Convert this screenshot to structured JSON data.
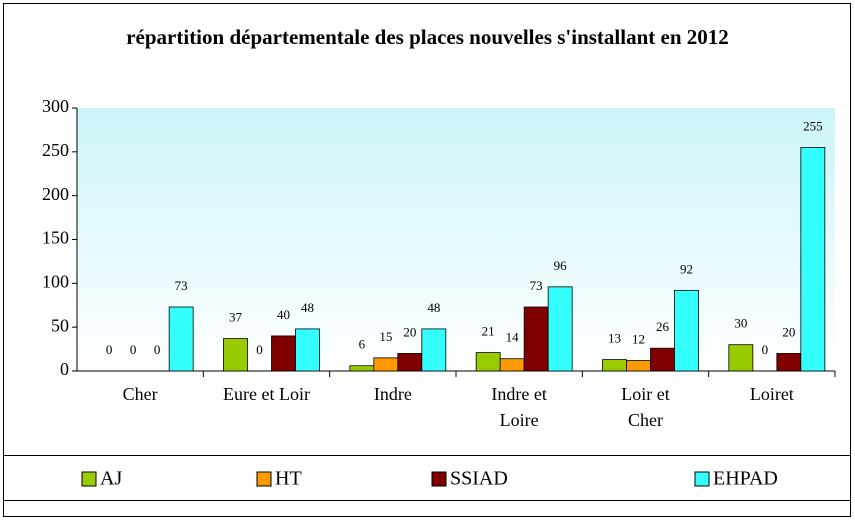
{
  "chart_data": {
    "type": "bar",
    "title": "répartition départementale des places nouvelles s'installant en 2012",
    "categories": [
      "Cher",
      "Eure et Loir",
      "Indre",
      "Indre et\nLoire",
      "Loir et\nCher",
      "Loiret"
    ],
    "series": [
      {
        "name": "AJ",
        "color": "#99cc00",
        "values": [
          0,
          37,
          6,
          21,
          13,
          30
        ]
      },
      {
        "name": "HT",
        "color": "#ff9900",
        "values": [
          0,
          0,
          15,
          14,
          12,
          0
        ]
      },
      {
        "name": "SSIAD",
        "color": "#800000",
        "values": [
          0,
          40,
          20,
          73,
          26,
          20
        ]
      },
      {
        "name": "EHPAD",
        "color": "#33ffff",
        "values": [
          73,
          48,
          48,
          96,
          92,
          255
        ]
      }
    ],
    "ylim": [
      0,
      300
    ],
    "yticks": [
      0,
      50,
      100,
      150,
      200,
      250,
      300
    ],
    "legend": "bottom"
  }
}
